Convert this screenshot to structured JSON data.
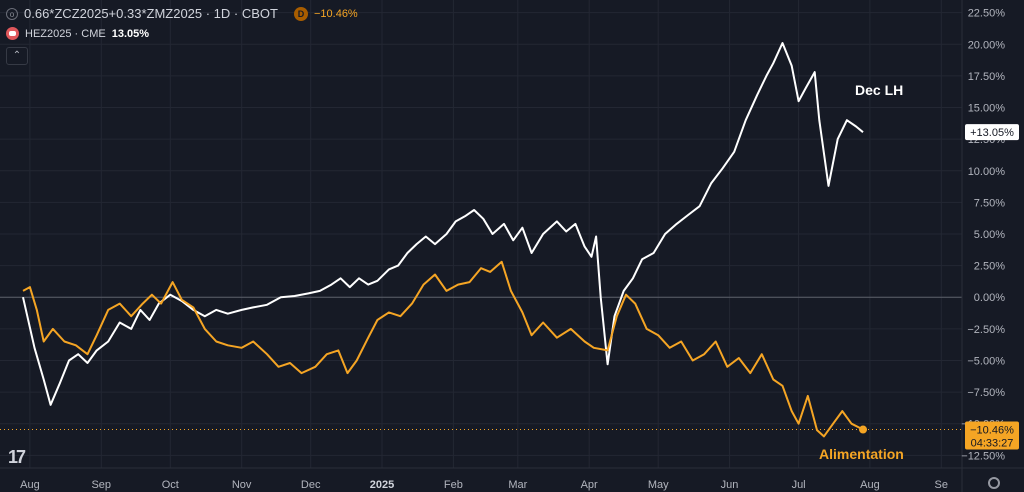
{
  "header": {
    "line1": {
      "symbol": "0.66*ZCZ2025+0.33*ZMZ2025 · 1D · CBOT",
      "icon_letter": "D",
      "change": "−10.46%"
    },
    "line2": {
      "symbol": "HEZ2025 · CME",
      "change": "13.05%"
    },
    "collapse_glyph": "⌃"
  },
  "logo": "17",
  "chart_data": {
    "type": "line",
    "y_unit": "%",
    "ylim": [
      -13.5,
      23.5
    ],
    "y_ticks": [
      "22.50%",
      "20.00%",
      "17.50%",
      "15.00%",
      "12.50%",
      "10.00%",
      "7.50%",
      "5.00%",
      "2.50%",
      "0.00%",
      "−2.50%",
      "−5.00%",
      "−7.50%",
      "−10.00%",
      "−12.50%"
    ],
    "y_tick_values": [
      22.5,
      20,
      17.5,
      15,
      12.5,
      10,
      7.5,
      5,
      2.5,
      0,
      -2.5,
      -5,
      -7.5,
      -10,
      -12.5
    ],
    "x_ticks": [
      "Aug",
      "Sep",
      "Oct",
      "Nov",
      "Dec",
      "2025",
      "Feb",
      "Mar",
      "Apr",
      "May",
      "Jun",
      "Jul",
      "Aug",
      "Se"
    ],
    "x_tick_bold": [
      false,
      false,
      false,
      false,
      false,
      true,
      false,
      false,
      false,
      false,
      false,
      false,
      false,
      false
    ],
    "x_tick_dates": [
      "2024-08-01",
      "2024-09-01",
      "2024-10-01",
      "2024-11-01",
      "2024-12-01",
      "2025-01-01",
      "2025-02-01",
      "2025-03-01",
      "2025-04-01",
      "2025-05-01",
      "2025-06-01",
      "2025-07-01",
      "2025-08-01",
      "2025-09-01"
    ],
    "zero_line": 0,
    "series": [
      {
        "name": "Dec LH",
        "color": "#ffffff",
        "last_label": "+13.05%",
        "points": [
          [
            "2024-07-29",
            0.0
          ],
          [
            "2024-08-03",
            -4.0
          ],
          [
            "2024-08-07",
            -6.5
          ],
          [
            "2024-08-10",
            -8.5
          ],
          [
            "2024-08-14",
            -6.8
          ],
          [
            "2024-08-18",
            -5.0
          ],
          [
            "2024-08-22",
            -4.5
          ],
          [
            "2024-08-26",
            -5.2
          ],
          [
            "2024-08-30",
            -4.2
          ],
          [
            "2024-09-04",
            -3.5
          ],
          [
            "2024-09-09",
            -2.0
          ],
          [
            "2024-09-14",
            -2.5
          ],
          [
            "2024-09-18",
            -1.0
          ],
          [
            "2024-09-22",
            -1.8
          ],
          [
            "2024-09-26",
            -0.5
          ],
          [
            "2024-10-01",
            0.2
          ],
          [
            "2024-10-06",
            -0.3
          ],
          [
            "2024-10-11",
            -1.0
          ],
          [
            "2024-10-16",
            -1.5
          ],
          [
            "2024-10-21",
            -1.0
          ],
          [
            "2024-10-26",
            -1.3
          ],
          [
            "2024-11-01",
            -1.0
          ],
          [
            "2024-11-06",
            -0.8
          ],
          [
            "2024-11-12",
            -0.6
          ],
          [
            "2024-11-18",
            0.0
          ],
          [
            "2024-11-24",
            0.1
          ],
          [
            "2024-11-30",
            0.3
          ],
          [
            "2024-12-05",
            0.5
          ],
          [
            "2024-12-10",
            1.0
          ],
          [
            "2024-12-14",
            1.5
          ],
          [
            "2024-12-18",
            0.8
          ],
          [
            "2024-12-22",
            1.5
          ],
          [
            "2024-12-26",
            1.0
          ],
          [
            "2024-12-30",
            1.3
          ],
          [
            "2025-01-04",
            2.2
          ],
          [
            "2025-01-08",
            2.5
          ],
          [
            "2025-01-12",
            3.5
          ],
          [
            "2025-01-16",
            4.2
          ],
          [
            "2025-01-20",
            4.8
          ],
          [
            "2025-01-24",
            4.2
          ],
          [
            "2025-01-29",
            5.0
          ],
          [
            "2025-02-02",
            6.0
          ],
          [
            "2025-02-06",
            6.4
          ],
          [
            "2025-02-10",
            6.9
          ],
          [
            "2025-02-14",
            6.2
          ],
          [
            "2025-02-18",
            5.0
          ],
          [
            "2025-02-23",
            5.8
          ],
          [
            "2025-02-27",
            4.5
          ],
          [
            "2025-03-03",
            5.5
          ],
          [
            "2025-03-07",
            3.5
          ],
          [
            "2025-03-12",
            5.0
          ],
          [
            "2025-03-18",
            6.0
          ],
          [
            "2025-03-22",
            5.2
          ],
          [
            "2025-03-26",
            5.8
          ],
          [
            "2025-03-30",
            4.0
          ],
          [
            "2025-04-02",
            3.2
          ],
          [
            "2025-04-04",
            4.8
          ],
          [
            "2025-04-06",
            0.0
          ],
          [
            "2025-04-09",
            -5.3
          ],
          [
            "2025-04-12",
            -1.5
          ],
          [
            "2025-04-16",
            0.5
          ],
          [
            "2025-04-20",
            1.5
          ],
          [
            "2025-04-24",
            3.0
          ],
          [
            "2025-04-29",
            3.5
          ],
          [
            "2025-05-04",
            5.0
          ],
          [
            "2025-05-09",
            5.8
          ],
          [
            "2025-05-14",
            6.5
          ],
          [
            "2025-05-19",
            7.2
          ],
          [
            "2025-05-24",
            9.0
          ],
          [
            "2025-05-29",
            10.2
          ],
          [
            "2025-06-03",
            11.5
          ],
          [
            "2025-06-08",
            14.0
          ],
          [
            "2025-06-13",
            16.0
          ],
          [
            "2025-06-17",
            17.5
          ],
          [
            "2025-06-20",
            18.5
          ],
          [
            "2025-06-24",
            20.1
          ],
          [
            "2025-06-28",
            18.3
          ],
          [
            "2025-07-01",
            15.5
          ],
          [
            "2025-07-04",
            16.5
          ],
          [
            "2025-07-08",
            17.8
          ],
          [
            "2025-07-10",
            14.0
          ],
          [
            "2025-07-14",
            8.8
          ],
          [
            "2025-07-18",
            12.5
          ],
          [
            "2025-07-22",
            14.0
          ],
          [
            "2025-07-26",
            13.5
          ],
          [
            "2025-07-29",
            13.05
          ]
        ]
      },
      {
        "name": "Alimentation",
        "color": "#f5a524",
        "last_label": "−10.46%",
        "countdown": "04:33:27",
        "points": [
          [
            "2024-07-29",
            0.5
          ],
          [
            "2024-08-01",
            0.8
          ],
          [
            "2024-08-04",
            -1.0
          ],
          [
            "2024-08-07",
            -3.5
          ],
          [
            "2024-08-11",
            -2.5
          ],
          [
            "2024-08-16",
            -3.5
          ],
          [
            "2024-08-21",
            -3.8
          ],
          [
            "2024-08-26",
            -4.5
          ],
          [
            "2024-08-30",
            -3.0
          ],
          [
            "2024-09-04",
            -1.0
          ],
          [
            "2024-09-09",
            -0.5
          ],
          [
            "2024-09-14",
            -1.5
          ],
          [
            "2024-09-19",
            -0.5
          ],
          [
            "2024-09-23",
            0.2
          ],
          [
            "2024-09-27",
            -0.5
          ],
          [
            "2024-10-02",
            1.2
          ],
          [
            "2024-10-06",
            -0.2
          ],
          [
            "2024-10-11",
            -0.8
          ],
          [
            "2024-10-16",
            -2.5
          ],
          [
            "2024-10-21",
            -3.5
          ],
          [
            "2024-10-26",
            -3.8
          ],
          [
            "2024-11-01",
            -4.0
          ],
          [
            "2024-11-06",
            -3.5
          ],
          [
            "2024-11-12",
            -4.5
          ],
          [
            "2024-11-17",
            -5.5
          ],
          [
            "2024-11-22",
            -5.2
          ],
          [
            "2024-11-27",
            -6.0
          ],
          [
            "2024-12-03",
            -5.5
          ],
          [
            "2024-12-08",
            -4.5
          ],
          [
            "2024-12-13",
            -4.2
          ],
          [
            "2024-12-17",
            -6.0
          ],
          [
            "2024-12-21",
            -5.0
          ],
          [
            "2024-12-26",
            -3.2
          ],
          [
            "2024-12-30",
            -1.8
          ],
          [
            "2025-01-04",
            -1.2
          ],
          [
            "2025-01-09",
            -1.5
          ],
          [
            "2025-01-14",
            -0.5
          ],
          [
            "2025-01-19",
            1.0
          ],
          [
            "2025-01-24",
            1.8
          ],
          [
            "2025-01-29",
            0.5
          ],
          [
            "2025-02-03",
            1.0
          ],
          [
            "2025-02-08",
            1.2
          ],
          [
            "2025-02-13",
            2.3
          ],
          [
            "2025-02-17",
            2.0
          ],
          [
            "2025-02-22",
            2.8
          ],
          [
            "2025-02-26",
            0.5
          ],
          [
            "2025-03-03",
            -1.2
          ],
          [
            "2025-03-07",
            -3.0
          ],
          [
            "2025-03-12",
            -2.0
          ],
          [
            "2025-03-18",
            -3.2
          ],
          [
            "2025-03-24",
            -2.5
          ],
          [
            "2025-03-30",
            -3.5
          ],
          [
            "2025-04-03",
            -4.0
          ],
          [
            "2025-04-09",
            -4.2
          ],
          [
            "2025-04-13",
            -1.5
          ],
          [
            "2025-04-17",
            0.2
          ],
          [
            "2025-04-21",
            -0.5
          ],
          [
            "2025-04-26",
            -2.5
          ],
          [
            "2025-05-01",
            -3.0
          ],
          [
            "2025-05-06",
            -4.0
          ],
          [
            "2025-05-11",
            -3.5
          ],
          [
            "2025-05-16",
            -5.0
          ],
          [
            "2025-05-21",
            -4.5
          ],
          [
            "2025-05-26",
            -3.5
          ],
          [
            "2025-05-31",
            -5.5
          ],
          [
            "2025-06-05",
            -4.8
          ],
          [
            "2025-06-10",
            -6.0
          ],
          [
            "2025-06-15",
            -4.5
          ],
          [
            "2025-06-20",
            -6.5
          ],
          [
            "2025-06-24",
            -7.0
          ],
          [
            "2025-06-28",
            -9.0
          ],
          [
            "2025-07-01",
            -10.0
          ],
          [
            "2025-07-05",
            -7.8
          ],
          [
            "2025-07-09",
            -10.5
          ],
          [
            "2025-07-12",
            -11.0
          ],
          [
            "2025-07-16",
            -10.0
          ],
          [
            "2025-07-20",
            -9.0
          ],
          [
            "2025-07-24",
            -10.0
          ],
          [
            "2025-07-29",
            -10.46
          ]
        ]
      }
    ]
  }
}
